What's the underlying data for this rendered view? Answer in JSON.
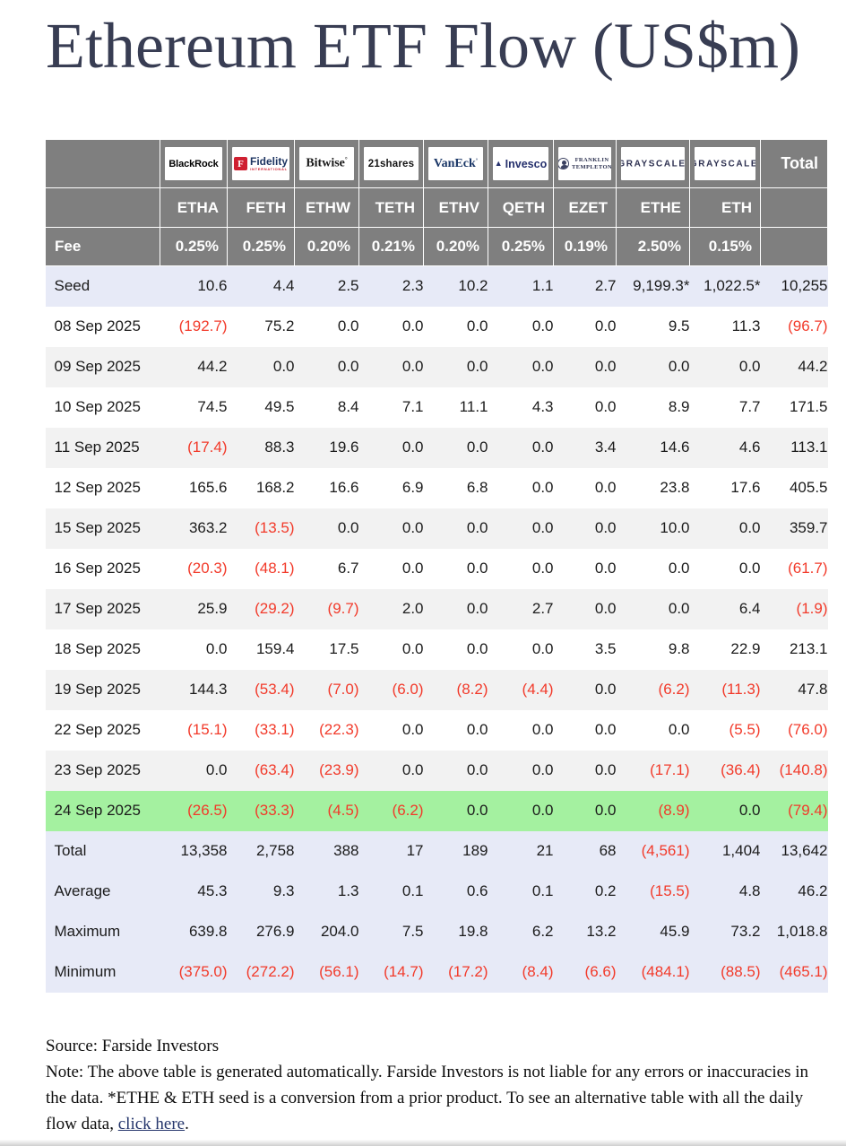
{
  "title": "Ethereum ETF Flow (US$m)",
  "table": {
    "total_label": "Total",
    "fee_label": "Fee",
    "providers": [
      {
        "id": "blackrock",
        "text": "BlackRock"
      },
      {
        "id": "fidelity",
        "text": "Fidelity",
        "subtext": "INTERNATIONAL"
      },
      {
        "id": "bitwise",
        "text": "Bitwise"
      },
      {
        "id": "21shares",
        "text": "21shares"
      },
      {
        "id": "vaneck",
        "text": "VanEck"
      },
      {
        "id": "invesco",
        "text": "Invesco"
      },
      {
        "id": "franklin",
        "lines": [
          "FRANKLIN",
          "TEMPLETON"
        ]
      },
      {
        "id": "grayscale",
        "text": "GRAYSCALE"
      },
      {
        "id": "grayscale2",
        "text": "GRAYSCALE"
      }
    ]
  },
  "chart_data": {
    "type": "table",
    "title": "Ethereum ETF Flow (US$m)",
    "columns": [
      "ETHA",
      "FETH",
      "ETHW",
      "TETH",
      "ETHV",
      "QETH",
      "EZET",
      "ETHE",
      "ETH",
      "Total"
    ],
    "fees": [
      "0.25%",
      "0.25%",
      "0.20%",
      "0.21%",
      "0.20%",
      "0.25%",
      "0.19%",
      "2.50%",
      "0.15%"
    ],
    "rows": [
      {
        "label": "Seed",
        "bg": "blue",
        "values": [
          "10.6",
          "4.4",
          "2.5",
          "2.3",
          "10.2",
          "1.1",
          "2.7",
          "9,199.3*",
          "1,022.5*",
          "10,255"
        ]
      },
      {
        "label": "08 Sep 2025",
        "bg": "white",
        "values": [
          "(192.7)",
          "75.2",
          "0.0",
          "0.0",
          "0.0",
          "0.0",
          "0.0",
          "9.5",
          "11.3",
          "(96.7)"
        ]
      },
      {
        "label": "09 Sep 2025",
        "bg": "gray",
        "values": [
          "44.2",
          "0.0",
          "0.0",
          "0.0",
          "0.0",
          "0.0",
          "0.0",
          "0.0",
          "0.0",
          "44.2"
        ]
      },
      {
        "label": "10 Sep 2025",
        "bg": "white",
        "values": [
          "74.5",
          "49.5",
          "8.4",
          "7.1",
          "11.1",
          "4.3",
          "0.0",
          "8.9",
          "7.7",
          "171.5"
        ]
      },
      {
        "label": "11 Sep 2025",
        "bg": "gray",
        "values": [
          "(17.4)",
          "88.3",
          "19.6",
          "0.0",
          "0.0",
          "0.0",
          "3.4",
          "14.6",
          "4.6",
          "113.1"
        ]
      },
      {
        "label": "12 Sep 2025",
        "bg": "white",
        "values": [
          "165.6",
          "168.2",
          "16.6",
          "6.9",
          "6.8",
          "0.0",
          "0.0",
          "23.8",
          "17.6",
          "405.5"
        ]
      },
      {
        "label": "15 Sep 2025",
        "bg": "gray",
        "values": [
          "363.2",
          "(13.5)",
          "0.0",
          "0.0",
          "0.0",
          "0.0",
          "0.0",
          "10.0",
          "0.0",
          "359.7"
        ]
      },
      {
        "label": "16 Sep 2025",
        "bg": "white",
        "values": [
          "(20.3)",
          "(48.1)",
          "6.7",
          "0.0",
          "0.0",
          "0.0",
          "0.0",
          "0.0",
          "0.0",
          "(61.7)"
        ]
      },
      {
        "label": "17 Sep 2025",
        "bg": "gray",
        "values": [
          "25.9",
          "(29.2)",
          "(9.7)",
          "2.0",
          "0.0",
          "2.7",
          "0.0",
          "0.0",
          "6.4",
          "(1.9)"
        ]
      },
      {
        "label": "18 Sep 2025",
        "bg": "white",
        "values": [
          "0.0",
          "159.4",
          "17.5",
          "0.0",
          "0.0",
          "0.0",
          "3.5",
          "9.8",
          "22.9",
          "213.1"
        ]
      },
      {
        "label": "19 Sep 2025",
        "bg": "gray",
        "values": [
          "144.3",
          "(53.4)",
          "(7.0)",
          "(6.0)",
          "(8.2)",
          "(4.4)",
          "0.0",
          "(6.2)",
          "(11.3)",
          "47.8"
        ]
      },
      {
        "label": "22 Sep 2025",
        "bg": "white",
        "values": [
          "(15.1)",
          "(33.1)",
          "(22.3)",
          "0.0",
          "0.0",
          "0.0",
          "0.0",
          "0.0",
          "(5.5)",
          "(76.0)"
        ]
      },
      {
        "label": "23 Sep 2025",
        "bg": "gray",
        "values": [
          "0.0",
          "(63.4)",
          "(23.9)",
          "0.0",
          "0.0",
          "0.0",
          "0.0",
          "(17.1)",
          "(36.4)",
          "(140.8)"
        ]
      },
      {
        "label": "24 Sep 2025",
        "bg": "green",
        "values": [
          "(26.5)",
          "(33.3)",
          "(4.5)",
          "(6.2)",
          "0.0",
          "0.0",
          "0.0",
          "(8.9)",
          "0.0",
          "(79.4)"
        ]
      },
      {
        "label": "Total",
        "bg": "blue",
        "values": [
          "13,358",
          "2,758",
          "388",
          "17",
          "189",
          "21",
          "68",
          "(4,561)",
          "1,404",
          "13,642"
        ]
      },
      {
        "label": "Average",
        "bg": "blue",
        "values": [
          "45.3",
          "9.3",
          "1.3",
          "0.1",
          "0.6",
          "0.1",
          "0.2",
          "(15.5)",
          "4.8",
          "46.2"
        ]
      },
      {
        "label": "Maximum",
        "bg": "blue",
        "values": [
          "639.8",
          "276.9",
          "204.0",
          "7.5",
          "19.8",
          "6.2",
          "13.2",
          "45.9",
          "73.2",
          "1,018.8"
        ]
      },
      {
        "label": "Minimum",
        "bg": "blue",
        "values": [
          "(375.0)",
          "(272.2)",
          "(56.1)",
          "(14.7)",
          "(17.2)",
          "(8.4)",
          "(6.6)",
          "(484.1)",
          "(88.5)",
          "(465.1)"
        ]
      }
    ]
  },
  "footer": {
    "source": "Source: Farside Investors",
    "note_prefix": "Note: The above table is generated automatically. Farside Investors is not liable for any errors or inaccuracies in the data. *ETHE & ETH seed is a conversion from a prior product.  To see an alternative table with all the daily flow data, ",
    "link_text": "click here",
    "note_suffix": "."
  },
  "colors": {
    "header_gray": "#7f7f7f",
    "row_blue": "#e7eaf7",
    "row_gray": "#f2f2f2",
    "row_green": "#a4f1a0",
    "negative_red": "#f23a2a",
    "title_navy": "#383d53"
  }
}
